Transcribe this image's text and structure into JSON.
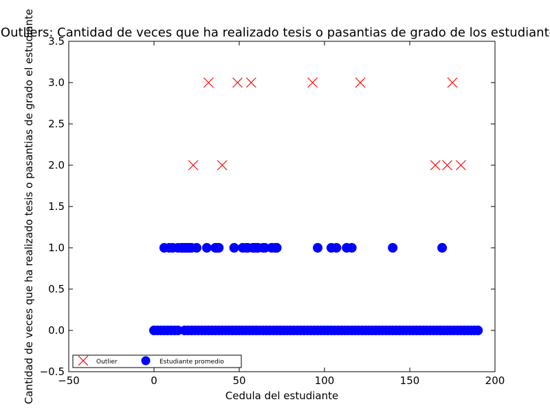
{
  "chart_data": {
    "type": "scatter",
    "title": "Outliers: Cantidad de veces que ha realizado tesis o pasantias de grado de los estudiantes",
    "xlabel": "Cedula del estudiante",
    "ylabel": "Cantidad de veces que ha realizado tesis o pasantias de grado el estudiante",
    "xlim": [
      -50,
      200
    ],
    "ylim": [
      -0.5,
      3.5
    ],
    "xticks": [
      -50,
      0,
      50,
      100,
      150,
      200
    ],
    "yticks": [
      -0.5,
      0.0,
      0.5,
      1.0,
      1.5,
      2.0,
      2.5,
      3.0,
      3.5
    ],
    "xtick_labels": [
      "−50",
      "0",
      "50",
      "100",
      "150",
      "200"
    ],
    "ytick_labels": [
      "−0.5",
      "0.0",
      "0.5",
      "1.0",
      "1.5",
      "2.0",
      "2.5",
      "3.0",
      "3.5"
    ],
    "legend_position": "lower-left",
    "series": [
      {
        "name": "Outlier",
        "marker": "x",
        "color": "#ff0000",
        "points": [
          [
            23,
            2
          ],
          [
            32,
            3
          ],
          [
            40,
            2
          ],
          [
            49,
            3
          ],
          [
            57,
            3
          ],
          [
            93,
            3
          ],
          [
            121,
            3
          ],
          [
            165,
            2
          ],
          [
            172,
            2
          ],
          [
            175,
            3
          ],
          [
            180,
            2
          ]
        ]
      },
      {
        "name": "Estudiante promedio",
        "marker": "circle",
        "color": "#0000ff",
        "points": [
          [
            6,
            1
          ],
          [
            9,
            1
          ],
          [
            11,
            1
          ],
          [
            14,
            1
          ],
          [
            16,
            1
          ],
          [
            17,
            1
          ],
          [
            18,
            1
          ],
          [
            19,
            1
          ],
          [
            20,
            1
          ],
          [
            21,
            1
          ],
          [
            22,
            1
          ],
          [
            25,
            1
          ],
          [
            31,
            1
          ],
          [
            36,
            1
          ],
          [
            37,
            1
          ],
          [
            38,
            1
          ],
          [
            47,
            1
          ],
          [
            52,
            1
          ],
          [
            54,
            1
          ],
          [
            55,
            1
          ],
          [
            58,
            1
          ],
          [
            59,
            1
          ],
          [
            60,
            1
          ],
          [
            61,
            1
          ],
          [
            64,
            1
          ],
          [
            65,
            1
          ],
          [
            69,
            1
          ],
          [
            71,
            1
          ],
          [
            72,
            1
          ],
          [
            96,
            1
          ],
          [
            104,
            1
          ],
          [
            107,
            1
          ],
          [
            113,
            1
          ],
          [
            116,
            1
          ],
          [
            140,
            1
          ],
          [
            169,
            1
          ],
          [
            0,
            0
          ],
          [
            2,
            0
          ],
          [
            4,
            0
          ],
          [
            6,
            0
          ],
          [
            8,
            0
          ],
          [
            10,
            0
          ],
          [
            12,
            0
          ],
          [
            14,
            0
          ],
          [
            18,
            0
          ],
          [
            20,
            0
          ],
          [
            22,
            0
          ],
          [
            24,
            0
          ],
          [
            26,
            0
          ],
          [
            28,
            0
          ],
          [
            30,
            0
          ],
          [
            32,
            0
          ],
          [
            34,
            0
          ],
          [
            36,
            0
          ],
          [
            38,
            0
          ],
          [
            40,
            0
          ],
          [
            42,
            0
          ],
          [
            44,
            0
          ],
          [
            46,
            0
          ],
          [
            48,
            0
          ],
          [
            50,
            0
          ],
          [
            52,
            0
          ],
          [
            54,
            0
          ],
          [
            56,
            0
          ],
          [
            58,
            0
          ],
          [
            60,
            0
          ],
          [
            62,
            0
          ],
          [
            64,
            0
          ],
          [
            66,
            0
          ],
          [
            68,
            0
          ],
          [
            70,
            0
          ],
          [
            72,
            0
          ],
          [
            74,
            0
          ],
          [
            76,
            0
          ],
          [
            78,
            0
          ],
          [
            80,
            0
          ],
          [
            82,
            0
          ],
          [
            84,
            0
          ],
          [
            86,
            0
          ],
          [
            88,
            0
          ],
          [
            90,
            0
          ],
          [
            92,
            0
          ],
          [
            94,
            0
          ],
          [
            96,
            0
          ],
          [
            98,
            0
          ],
          [
            100,
            0
          ],
          [
            102,
            0
          ],
          [
            104,
            0
          ],
          [
            106,
            0
          ],
          [
            108,
            0
          ],
          [
            110,
            0
          ],
          [
            112,
            0
          ],
          [
            114,
            0
          ],
          [
            116,
            0
          ],
          [
            118,
            0
          ],
          [
            120,
            0
          ],
          [
            122,
            0
          ],
          [
            124,
            0
          ],
          [
            126,
            0
          ],
          [
            128,
            0
          ],
          [
            130,
            0
          ],
          [
            132,
            0
          ],
          [
            134,
            0
          ],
          [
            136,
            0
          ],
          [
            138,
            0
          ],
          [
            140,
            0
          ],
          [
            142,
            0
          ],
          [
            144,
            0
          ],
          [
            146,
            0
          ],
          [
            148,
            0
          ],
          [
            150,
            0
          ],
          [
            152,
            0
          ],
          [
            154,
            0
          ],
          [
            156,
            0
          ],
          [
            158,
            0
          ],
          [
            160,
            0
          ],
          [
            162,
            0
          ],
          [
            164,
            0
          ],
          [
            166,
            0
          ],
          [
            168,
            0
          ],
          [
            170,
            0
          ],
          [
            172,
            0
          ],
          [
            174,
            0
          ],
          [
            176,
            0
          ],
          [
            178,
            0
          ],
          [
            180,
            0
          ],
          [
            182,
            0
          ],
          [
            184,
            0
          ],
          [
            186,
            0
          ],
          [
            188,
            0
          ],
          [
            190,
            0
          ]
        ]
      }
    ],
    "grid": false
  }
}
